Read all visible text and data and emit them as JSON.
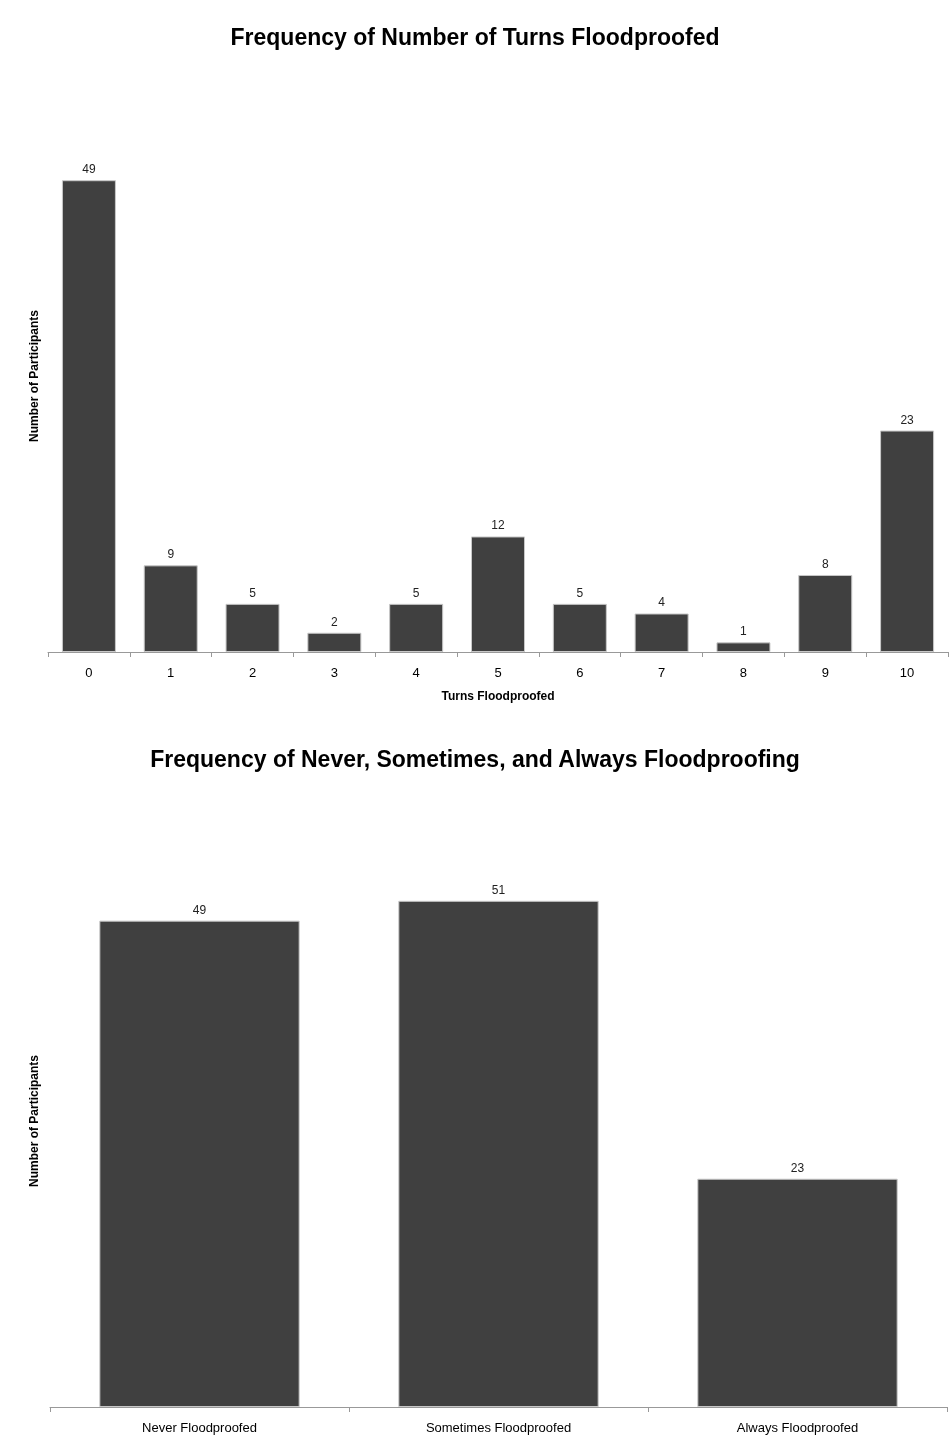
{
  "chart_data": [
    {
      "type": "bar",
      "title": "Frequency of Number of Turns Floodproofed",
      "xlabel": "Turns Floodproofed",
      "ylabel": "Number of Participants",
      "categories": [
        "0",
        "1",
        "2",
        "3",
        "4",
        "5",
        "6",
        "7",
        "8",
        "9",
        "10"
      ],
      "values": [
        49,
        9,
        5,
        2,
        5,
        12,
        5,
        4,
        1,
        8,
        23
      ],
      "color": "#404040",
      "data_labels": true
    },
    {
      "type": "bar",
      "title": "Frequency of Never, Sometimes, and Always Floodproofing",
      "ylabel": "Number of Participants",
      "categories": [
        "Never Floodproofed",
        "Sometimes Floodproofed",
        "Always Floodproofed"
      ],
      "values": [
        49,
        51,
        23
      ],
      "color": "#404040",
      "data_labels": true
    }
  ]
}
